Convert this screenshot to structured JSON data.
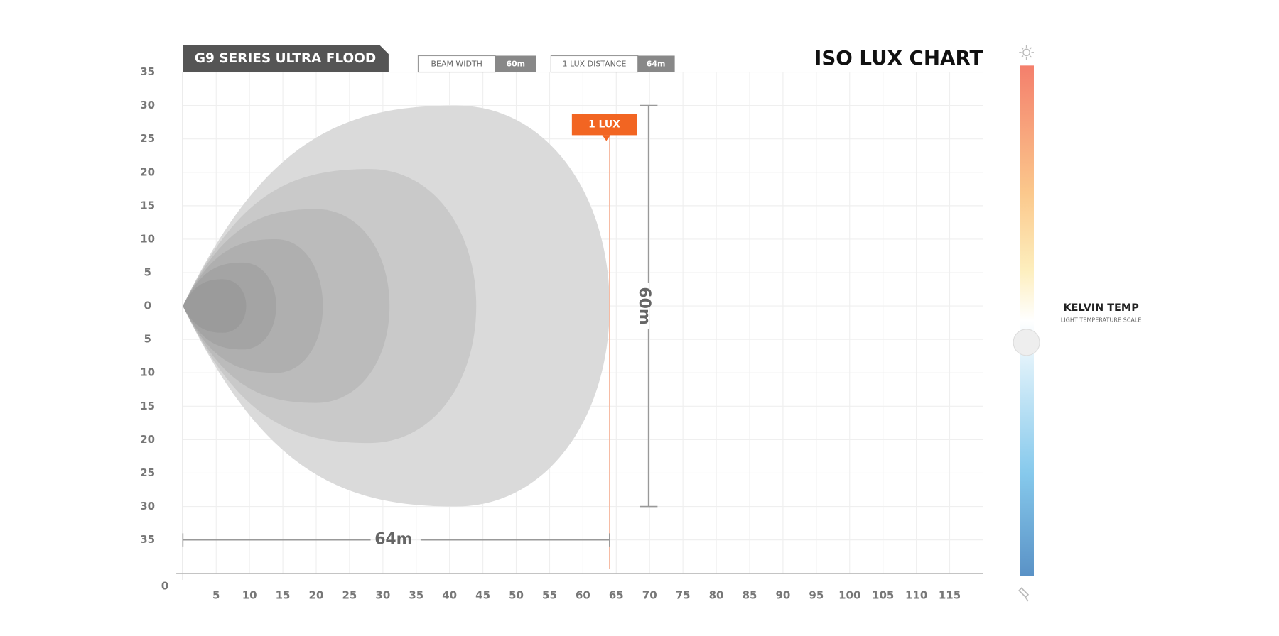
{
  "chart_data": {
    "type": "isolux",
    "title": "ISO LUX CHART",
    "product": "G9 SERIES ULTRA FLOOD",
    "beam_width": {
      "name": "BEAM WIDTH",
      "value": 60,
      "label": "60m"
    },
    "lux_distance": {
      "name": "1 LUX DISTANCE",
      "value": 64,
      "label": "64m"
    },
    "lux_marker": "1 LUX",
    "xlim": [
      0,
      120
    ],
    "ylim": [
      -40,
      35
    ],
    "xticks": [
      0,
      5,
      10,
      15,
      20,
      25,
      30,
      35,
      40,
      45,
      50,
      55,
      60,
      65,
      70,
      75,
      80,
      85,
      90,
      95,
      100,
      105,
      110,
      115
    ],
    "yticks": [
      35,
      30,
      25,
      20,
      15,
      10,
      5,
      0,
      {
        "value": -5,
        "label": "5"
      },
      {
        "value": -10,
        "label": "10"
      },
      {
        "value": -15,
        "label": "15"
      },
      {
        "value": -20,
        "label": "20"
      },
      {
        "value": -25,
        "label": "25"
      },
      {
        "value": -30,
        "label": "30"
      },
      {
        "value": -35,
        "label": "35"
      }
    ],
    "grid": true,
    "contours": [
      {
        "reach": 64,
        "peak_at": 41,
        "half_width": 30,
        "color": "#dadada"
      },
      {
        "reach": 44,
        "peak_at": 28,
        "half_width": 20.5,
        "color": "#c9c9c9"
      },
      {
        "reach": 31,
        "peak_at": 20,
        "half_width": 14.5,
        "color": "#bbbbbb"
      },
      {
        "reach": 21,
        "peak_at": 14,
        "half_width": 10,
        "color": "#afafaf"
      },
      {
        "reach": 14,
        "peak_at": 9,
        "half_width": 6.5,
        "color": "#a4a4a4"
      },
      {
        "reach": 9.5,
        "peak_at": 6,
        "half_width": 4,
        "color": "#9b9b9b"
      }
    ],
    "kelvin": {
      "title": "KELVIN TEMP",
      "subtitle": "LIGHT TEMPERATURE SCALE"
    }
  }
}
